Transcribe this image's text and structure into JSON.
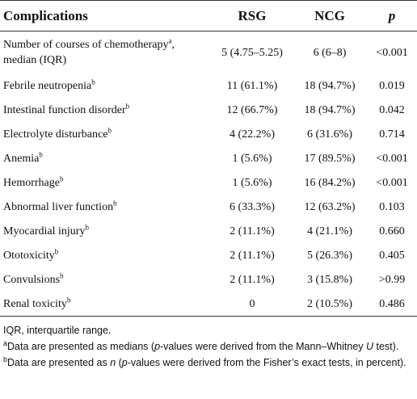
{
  "table": {
    "header": [
      {
        "text": "Complications"
      },
      {
        "text": "RSG"
      },
      {
        "text": "NCG"
      },
      {
        "text": "p",
        "italic": true
      }
    ],
    "rows": [
      {
        "label": "Number of courses of chemotherapy",
        "sup": "a",
        "label_rest": ", median (IQR)",
        "cells": [
          "5 (4.75–5.25)",
          "6 (6–8)",
          "<0.001"
        ]
      },
      {
        "label": "Febrile neutropenia",
        "sup": "b",
        "cells": [
          "11 (61.1%)",
          "18 (94.7%)",
          "0.019"
        ]
      },
      {
        "label": "Intestinal function disorder",
        "sup": "b",
        "cells": [
          "12 (66.7%)",
          "18 (94.7%)",
          "0.042"
        ]
      },
      {
        "label": "Electrolyte disturbance",
        "sup": "b",
        "cells": [
          "4 (22.2%)",
          "6 (31.6%)",
          "0.714"
        ]
      },
      {
        "label": "Anemia",
        "sup": "b",
        "cells": [
          "1 (5.6%)",
          "17 (89.5%)",
          "<0.001"
        ]
      },
      {
        "label": "Hemorrhage",
        "sup": "b",
        "cells": [
          "1 (5.6%)",
          "16 (84.2%)",
          "<0.001"
        ]
      },
      {
        "label": "Abnormal liver function",
        "sup": "b",
        "cells": [
          "6 (33.3%)",
          "12 (63.2%)",
          "0.103"
        ]
      },
      {
        "label": "Myocardial injury",
        "sup": "b",
        "cells": [
          "2 (11.1%)",
          "4 (21.1%)",
          "0.660"
        ]
      },
      {
        "label": "Ototoxicity",
        "sup": "b",
        "cells": [
          "2 (11.1%)",
          "5 (26.3%)",
          "0.405"
        ]
      },
      {
        "label": "Convulsions",
        "sup": "b",
        "cells": [
          "2 (11.1%)",
          "3 (15.8%)",
          ">0.99"
        ]
      },
      {
        "label": "Renal toxicity",
        "sup": "b",
        "cells": [
          "0",
          "2 (10.5%)",
          "0.486"
        ]
      }
    ]
  },
  "footnotes": [
    {
      "segments": [
        {
          "text": "IQR, interquartile range."
        }
      ]
    },
    {
      "sup": "a",
      "segments": [
        {
          "text": "Data are presented as medians ("
        },
        {
          "text": "p",
          "italic": true
        },
        {
          "text": "-values were derived from the Mann–Whitney "
        },
        {
          "text": "U",
          "italic": true
        },
        {
          "text": " test)."
        }
      ]
    },
    {
      "sup": "b",
      "segments": [
        {
          "text": "Data are presented as "
        },
        {
          "text": "n",
          "italic": true
        },
        {
          "text": " ("
        },
        {
          "text": "p",
          "italic": true
        },
        {
          "text": "-values were derived from the Fisher’s exact tests, in percent)."
        }
      ]
    }
  ]
}
